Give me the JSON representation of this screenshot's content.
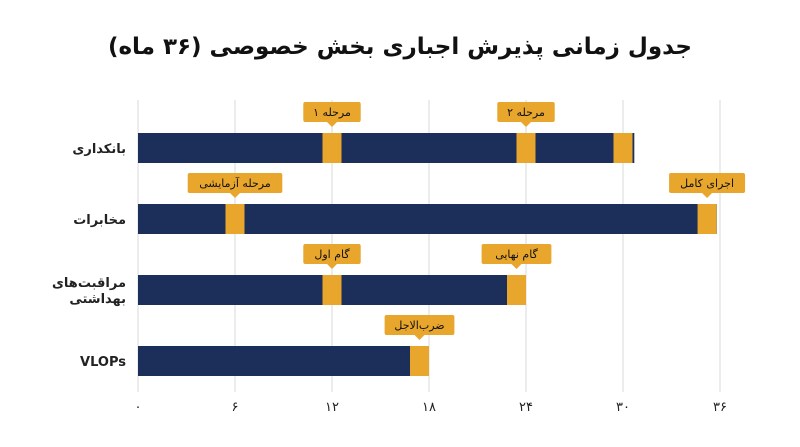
{
  "chart_data": {
    "type": "bar",
    "title": "جدول زمانی پذیرش اجباری بخش خصوصی (۳۶ ماه)",
    "xlim": [
      0,
      36
    ],
    "x_ticks": [
      0,
      6,
      12,
      18,
      24,
      30,
      36
    ],
    "x_tick_labels": [
      "۰",
      "۶",
      "۱۲",
      "۱۸",
      "۲۴",
      "۳۰",
      "۳۶"
    ],
    "grid": true,
    "colors": {
      "bar": "#1b2f5a",
      "milestone": "#e8a62d",
      "grid": "#d9d9d9",
      "callout": "#e8a62d"
    },
    "categories": [
      {
        "label": [
          "بانکداری"
        ],
        "end": 30.7,
        "milestones": [
          {
            "month": 12,
            "label": "مرحله ۱"
          },
          {
            "month": 24,
            "label": "مرحله ۲"
          },
          {
            "month": 30,
            "label": ""
          }
        ]
      },
      {
        "label": [
          "مخابرات"
        ],
        "end": 35.8,
        "milestones": [
          {
            "month": 6,
            "label": "مرحله آزمایشی"
          },
          {
            "month": 35.2,
            "label": "اجرای کامل"
          }
        ]
      },
      {
        "label": [
          "مراقبت‌های",
          "بهداشتی"
        ],
        "end": 24,
        "milestones": [
          {
            "month": 12,
            "label": "گام اول"
          },
          {
            "month": 24,
            "label": "گام نهایی"
          }
        ]
      },
      {
        "label": [
          "VLOPs"
        ],
        "end": 18,
        "milestones": [
          {
            "month": 18,
            "label": "ضرب‌الاجل"
          }
        ]
      }
    ]
  }
}
